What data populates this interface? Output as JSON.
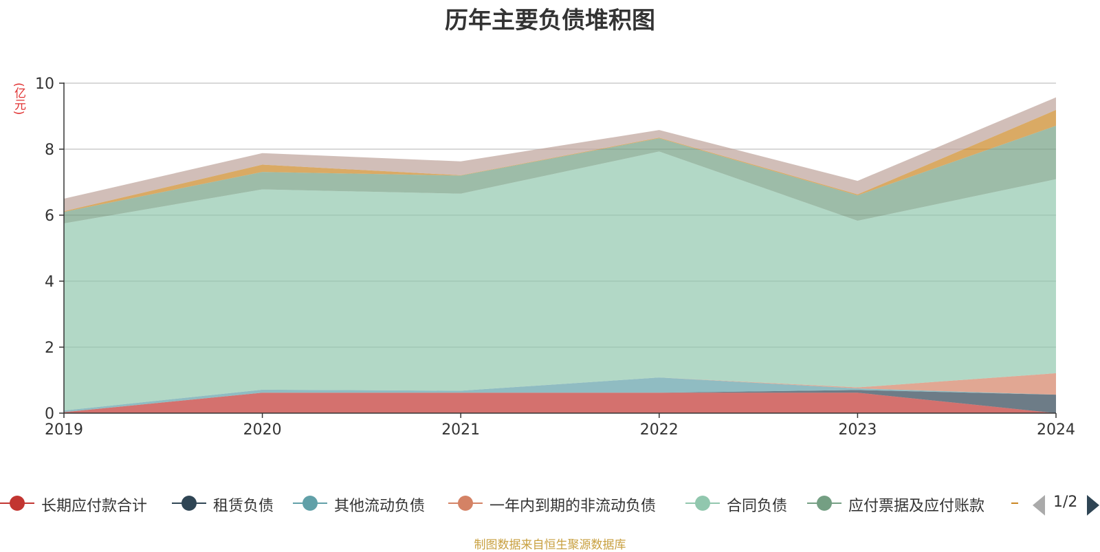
{
  "chart_data": {
    "type": "area",
    "title": "历年主要负债堆积图",
    "ylabel": "(亿元)",
    "xlabel": "",
    "x": [
      "2019",
      "2020",
      "2021",
      "2022",
      "2023",
      "2024"
    ],
    "ylim": [
      0,
      10
    ],
    "yticks": [
      "0",
      "2",
      "4",
      "6",
      "8",
      "10"
    ],
    "grid": true,
    "stacked": true,
    "legend_position": "bottom",
    "series": [
      {
        "name": "长期应付款合计",
        "color": "#c23531",
        "values": [
          0.03,
          0.62,
          0.62,
          0.62,
          0.62,
          0.0
        ]
      },
      {
        "name": "租赁负债",
        "color": "#2f4554",
        "values": [
          0.0,
          0.0,
          0.0,
          0.0,
          0.08,
          0.56
        ]
      },
      {
        "name": "其他流动负债",
        "color": "#61a0a8",
        "values": [
          0.05,
          0.09,
          0.06,
          0.46,
          0.05,
          0.0
        ]
      },
      {
        "name": "一年内到期的非流动负债",
        "color": "#d48265",
        "values": [
          0.0,
          0.0,
          0.0,
          0.0,
          0.03,
          0.65
        ]
      },
      {
        "name": "合同负债",
        "color": "#91c7ae",
        "values": [
          5.67,
          6.07,
          5.97,
          6.85,
          5.05,
          5.88
        ]
      },
      {
        "name": "应付票据及应付账款",
        "color": "#749f83",
        "values": [
          0.35,
          0.53,
          0.55,
          0.4,
          0.77,
          1.62
        ]
      },
      {
        "name": "",
        "color": "#ca8622",
        "values": [
          0.02,
          0.22,
          0.01,
          0.02,
          0.03,
          0.48
        ]
      },
      {
        "name": "",
        "color": "#bda29a",
        "values": [
          0.38,
          0.35,
          0.42,
          0.23,
          0.41,
          0.38
        ]
      }
    ]
  },
  "legend": {
    "items": [
      {
        "label": "长期应付款合计",
        "color": "#c23531"
      },
      {
        "label": "租赁负债",
        "color": "#2f4554"
      },
      {
        "label": "其他流动负债",
        "color": "#61a0a8"
      },
      {
        "label": "一年内到期的非流动负债",
        "color": "#d48265"
      },
      {
        "label": "合同负债",
        "color": "#91c7ae"
      },
      {
        "label": "应付票据及应付账款",
        "color": "#749f83"
      }
    ],
    "truncated_color": "#ca8622",
    "page": "1/2"
  },
  "source": "制图数据来自恒生聚源数据库"
}
